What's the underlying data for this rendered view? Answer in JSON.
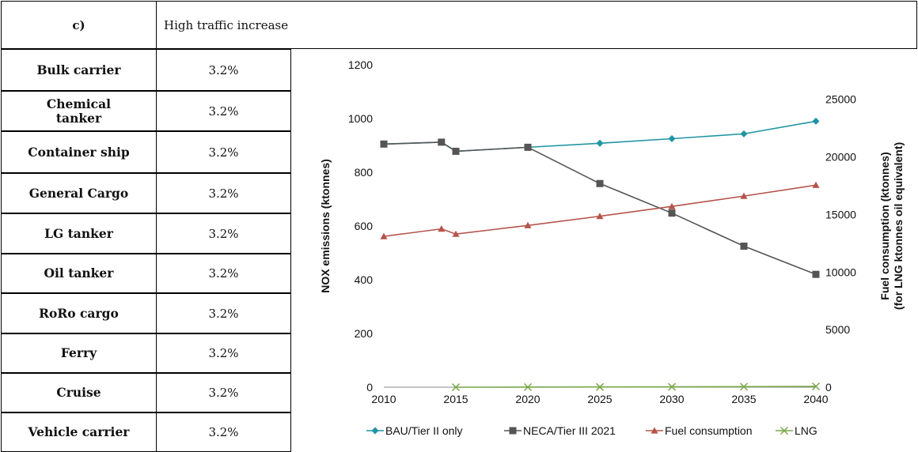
{
  "header": {
    "label": "c)",
    "scenario": "High traffic increase"
  },
  "rows": [
    {
      "name": "Bulk carrier",
      "value": "3.2%"
    },
    {
      "name": "Chemical tanker",
      "value": "3.2%"
    },
    {
      "name": "Container ship",
      "value": "3.2%"
    },
    {
      "name": "General Cargo",
      "value": "3.2%"
    },
    {
      "name": "LG tanker",
      "value": "3.2%"
    },
    {
      "name": "Oil tanker",
      "value": "3.2%"
    },
    {
      "name": "RoRo cargo",
      "value": "3.2%"
    },
    {
      "name": "Ferry",
      "value": "3.2%"
    },
    {
      "name": "Cruise",
      "value": "3.2%"
    },
    {
      "name": "Vehicle carrier",
      "value": "3.2%"
    }
  ],
  "chart_data": {
    "type": "line",
    "ylabel": "NOX emissions (ktonnes)",
    "y2label_line1": "Fuel consumption (ktonnes)",
    "y2label_line2": "(for LNG ktonnes oil equivalent)",
    "xlim": [
      2010,
      2040
    ],
    "ylim": [
      0,
      1200
    ],
    "y2lim": [
      0,
      28000
    ],
    "x_ticks": [
      "2010",
      "2015",
      "2020",
      "2025",
      "2030",
      "2035",
      "2040"
    ],
    "y_ticks": [
      "0",
      "200",
      "400",
      "600",
      "800",
      "1000",
      "1200"
    ],
    "y2_ticks": [
      "0",
      "5000",
      "10000",
      "15000",
      "20000",
      "25000"
    ],
    "grid": false,
    "legend_position": "bottom",
    "series": [
      {
        "name": "BAU/Tier II only",
        "axis": "left",
        "color": "#1f94a3",
        "marker": "diamond",
        "x": [
          2010,
          2014,
          2015,
          2020,
          2025,
          2030,
          2035,
          2040
        ],
        "y": [
          905,
          912,
          878,
          893,
          908,
          925,
          943,
          990
        ]
      },
      {
        "name": "NECA/Tier III 2021",
        "axis": "left",
        "color": "#555555",
        "marker": "square",
        "x": [
          2010,
          2014,
          2015,
          2020,
          2025,
          2030,
          2035,
          2040
        ],
        "y": [
          905,
          912,
          878,
          893,
          758,
          648,
          525,
          420
        ]
      },
      {
        "name": "Fuel consumption",
        "axis": "right",
        "color": "#b5534b",
        "marker": "triangle",
        "x": [
          2010,
          2014,
          2015,
          2020,
          2025,
          2030,
          2035,
          2040
        ],
        "y": [
          13100,
          13750,
          13300,
          14050,
          14850,
          15700,
          16600,
          17550
        ]
      },
      {
        "name": "LNG",
        "axis": "right",
        "color": "#79a84a",
        "marker": "x",
        "x": [
          2015,
          2020,
          2025,
          2030,
          2035,
          2040
        ],
        "y": [
          0,
          10,
          20,
          30,
          45,
          70
        ]
      }
    ]
  }
}
